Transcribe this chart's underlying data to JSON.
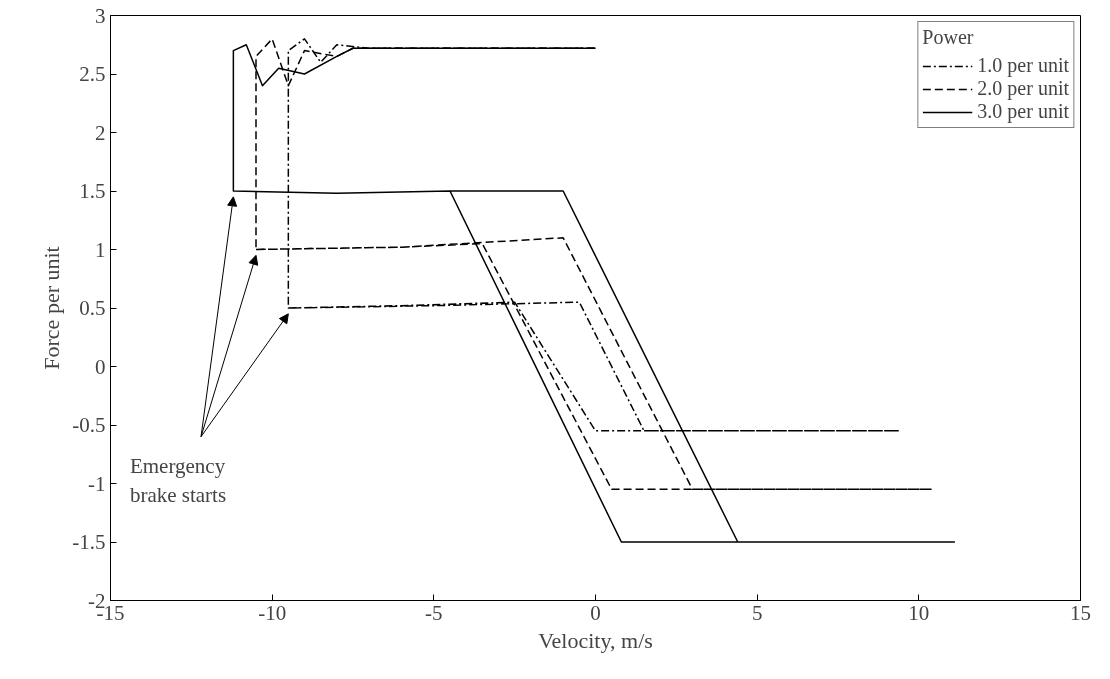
{
  "chart_data": {
    "type": "line",
    "xlabel": "Velocity, m/s",
    "ylabel": "Force per unit",
    "legend_title": "Power",
    "xlim": [
      -15,
      15
    ],
    "ylim": [
      -2,
      3
    ],
    "xticks": [
      -15,
      -10,
      -5,
      0,
      5,
      10,
      15
    ],
    "yticks": [
      -2,
      -1.5,
      -1,
      -0.5,
      0,
      0.5,
      1,
      1.5,
      2,
      2.5,
      3
    ],
    "grid": false,
    "legend": "top right",
    "marker": "none",
    "series": [
      {
        "name": "1.0 per unit",
        "color": "#000000",
        "line_style": "dashdot",
        "x": [
          -9.5,
          -6,
          -2.5,
          0,
          5,
          9.4,
          5,
          1.5,
          -0.5,
          -5,
          -9.5,
          -9.5,
          -9,
          -8.5,
          -8,
          -7,
          -3,
          0
        ],
        "values": [
          0.5,
          0.52,
          0.55,
          -0.55,
          -0.55,
          -0.55,
          -0.55,
          -0.55,
          0.55,
          0.52,
          0.5,
          2.7,
          2.8,
          2.6,
          2.75,
          2.72,
          2.72,
          2.72
        ]
      },
      {
        "name": "2.0 per unit",
        "color": "#000000",
        "line_style": "dashed",
        "x": [
          -10.5,
          -6,
          -3.5,
          0.5,
          5,
          10.4,
          5,
          3,
          -1,
          -6,
          -10.5,
          -10.5,
          -10,
          -9.5,
          -9,
          -8,
          -7.5,
          -3,
          0
        ],
        "values": [
          1.0,
          1.02,
          1.05,
          -1.05,
          -1.05,
          -1.05,
          -1.05,
          -1.05,
          1.1,
          1.02,
          1.0,
          2.65,
          2.8,
          2.4,
          2.7,
          2.65,
          2.72,
          2.72,
          2.72
        ]
      },
      {
        "name": "3.0 per unit",
        "color": "#000000",
        "line_style": "solid",
        "x": [
          -11.2,
          -8,
          -4.5,
          0.8,
          5,
          11.1,
          5,
          4.4,
          -1,
          -4.5,
          -8,
          -11.2,
          -11.2,
          -10.8,
          -10.3,
          -9.8,
          -9,
          -8,
          -7.5,
          -3,
          0
        ],
        "values": [
          1.5,
          1.48,
          1.5,
          -1.5,
          -1.5,
          -1.5,
          -1.5,
          -1.5,
          1.5,
          1.5,
          1.48,
          1.5,
          2.7,
          2.75,
          2.4,
          2.55,
          2.5,
          2.65,
          2.72,
          2.72,
          2.72
        ]
      }
    ],
    "annotations": [
      "Emergency\nbrake starts"
    ]
  }
}
